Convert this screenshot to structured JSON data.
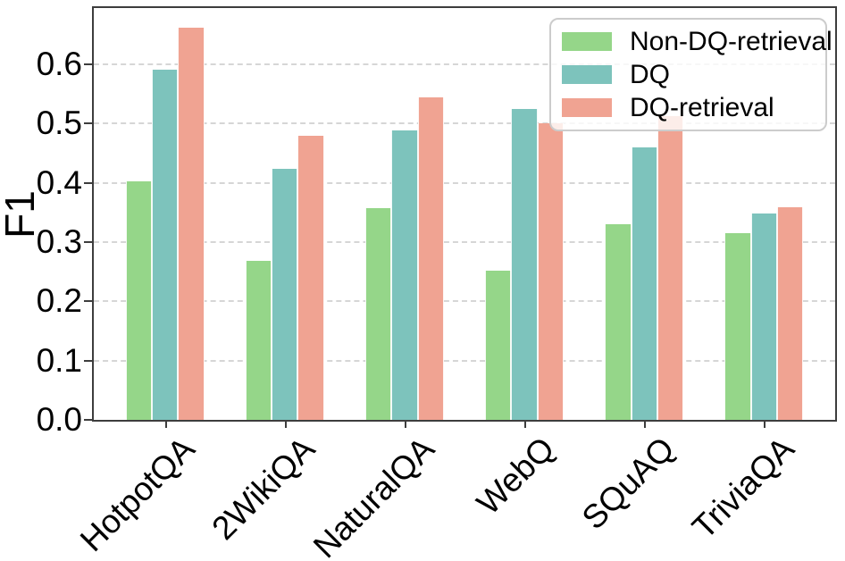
{
  "chart_data": {
    "type": "bar",
    "title": "",
    "xlabel": "",
    "ylabel": "F1",
    "categories": [
      "HotpotQA",
      "2WikiQA",
      "NaturalQA",
      "WebQ",
      "SQuAQ",
      "TriviaQA"
    ],
    "series": [
      {
        "name": "Non-DQ-retrieval",
        "color": "#95d689",
        "values": [
          0.403,
          0.268,
          0.358,
          0.252,
          0.33,
          0.315
        ]
      },
      {
        "name": "DQ",
        "color": "#7dc3bc",
        "values": [
          0.591,
          0.424,
          0.489,
          0.525,
          0.46,
          0.348
        ]
      },
      {
        "name": "DQ-retrieval",
        "color": "#f0a392",
        "values": [
          0.662,
          0.48,
          0.545,
          0.501,
          0.512,
          0.359
        ]
      }
    ],
    "ylim": [
      0,
      0.695
    ],
    "y_ticks": [
      "0.0",
      "0.1",
      "0.2",
      "0.3",
      "0.4",
      "0.5",
      "0.6"
    ],
    "grid": "horizontal-dashed",
    "legend_position": "upper-right",
    "colors": {
      "spine": "#3d3d3d",
      "gridline": "#d6d6d6",
      "legend_border": "#cccccc"
    }
  }
}
